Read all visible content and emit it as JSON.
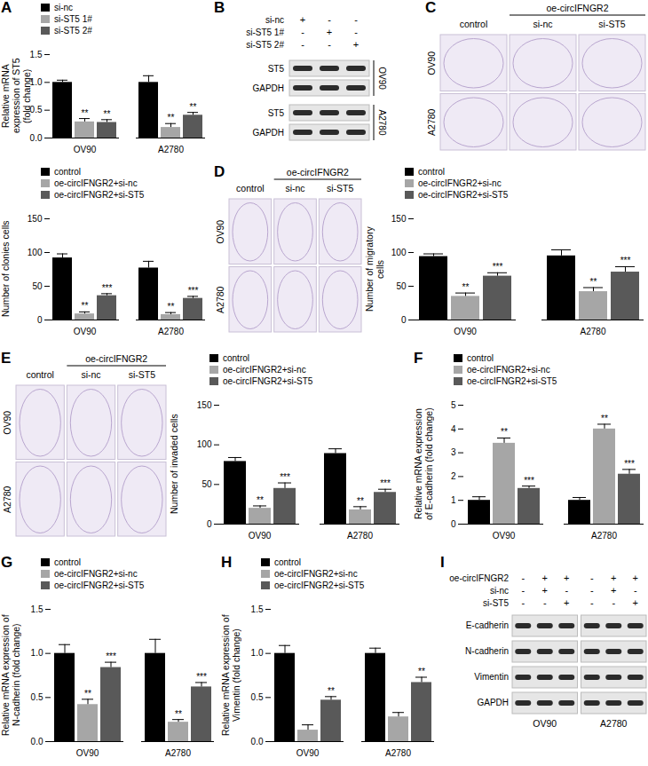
{
  "chart_data": [
    {
      "type": "bar",
      "panel": "A",
      "ylabel": "Relative mRNA expression of ST5 (fold change)",
      "categories": [
        "OV90",
        "A2780"
      ],
      "ylim": [
        0,
        1.5
      ],
      "yticks": [
        {
          "value": 0,
          "label": "0.0"
        },
        {
          "value": 0.5,
          "label": "0.5"
        },
        {
          "value": 1,
          "label": "1.0"
        },
        {
          "value": 1.5,
          "label": "1.5"
        }
      ],
      "series": [
        {
          "name": "si-nc",
          "color": "#000000",
          "values": [
            1.0,
            1.0
          ],
          "errors": [
            0.04,
            0.12
          ],
          "annotations": [
            null,
            null
          ]
        },
        {
          "name": "si-ST5 1#",
          "color": "#a6a6a6",
          "values": [
            0.29,
            0.19
          ],
          "errors": [
            0.06,
            0.07
          ],
          "annotations": [
            "**",
            "**"
          ]
        },
        {
          "name": "si-ST5 2#",
          "color": "#595959",
          "values": [
            0.28,
            0.41
          ],
          "errors": [
            0.05,
            0.05
          ],
          "annotations": [
            "**",
            "**"
          ]
        }
      ]
    },
    {
      "type": "bar",
      "ylabel": "Number of clonies cells",
      "categories": [
        "OV90",
        "A2780"
      ],
      "ylim": [
        0,
        150
      ],
      "yticks": [
        0,
        50,
        100,
        150
      ],
      "series": [
        {
          "name": "control",
          "color": "#000000",
          "values": [
            92,
            77
          ],
          "errors": [
            6,
            10
          ],
          "annotations": [
            null,
            null
          ]
        },
        {
          "name": "oe-circIFNGR2+si-nc",
          "color": "#a6a6a6",
          "values": [
            9,
            8
          ],
          "errors": [
            3,
            3
          ],
          "annotations": [
            "**",
            "**"
          ]
        },
        {
          "name": "oe-circIFNGR2+si-ST5",
          "color": "#595959",
          "values": [
            36,
            32
          ],
          "errors": [
            3,
            3
          ],
          "annotations": [
            "***",
            "***"
          ]
        }
      ]
    },
    {
      "type": "bar",
      "ylabel": "Number of migratory cells",
      "categories": [
        "OV90",
        "A2780"
      ],
      "ylim": [
        0,
        150
      ],
      "yticks": [
        0,
        50,
        100,
        150
      ],
      "series": [
        {
          "name": "control",
          "color": "#000000",
          "values": [
            94,
            95
          ],
          "errors": [
            4,
            9
          ],
          "annotations": [
            null,
            null
          ]
        },
        {
          "name": "oe-circIFNGR2+si-nc",
          "color": "#a6a6a6",
          "values": [
            35,
            42
          ],
          "errors": [
            5,
            6
          ],
          "annotations": [
            "**",
            "**"
          ]
        },
        {
          "name": "oe-circIFNGR2+si-ST5",
          "color": "#595959",
          "values": [
            65,
            71
          ],
          "errors": [
            5,
            8
          ],
          "annotations": [
            "***",
            "***"
          ]
        }
      ]
    },
    {
      "type": "bar",
      "ylabel": "Number of invaded cells",
      "categories": [
        "OV90",
        "A2780"
      ],
      "ylim": [
        0,
        150
      ],
      "yticks": [
        0,
        50,
        100,
        150
      ],
      "series": [
        {
          "name": "control",
          "color": "#000000",
          "values": [
            79,
            89
          ],
          "errors": [
            5,
            6
          ],
          "annotations": [
            null,
            null
          ]
        },
        {
          "name": "oe-circIFNGR2+si-nc",
          "color": "#a6a6a6",
          "values": [
            20,
            18
          ],
          "errors": [
            3,
            4
          ],
          "annotations": [
            "**",
            "**"
          ]
        },
        {
          "name": "oe-circIFNGR2+si-ST5",
          "color": "#595959",
          "values": [
            45,
            40
          ],
          "errors": [
            7,
            4
          ],
          "annotations": [
            "***",
            "***"
          ]
        }
      ]
    },
    {
      "type": "bar",
      "panel": "F",
      "ylabel": "Relative mRNA expression of E-cadherin (fold change)",
      "categories": [
        "OV90",
        "A2780"
      ],
      "ylim": [
        0,
        5
      ],
      "yticks": [
        0,
        1,
        2,
        3,
        4,
        5
      ],
      "series": [
        {
          "name": "control",
          "color": "#000000",
          "values": [
            1.0,
            1.0
          ],
          "errors": [
            0.15,
            0.12
          ],
          "annotations": [
            null,
            null
          ]
        },
        {
          "name": "oe-circIFNGR2+si-nc",
          "color": "#a6a6a6",
          "values": [
            3.4,
            4.0
          ],
          "errors": [
            0.22,
            0.2
          ],
          "annotations": [
            "**",
            "**"
          ]
        },
        {
          "name": "oe-circIFNGR2+si-ST5",
          "color": "#595959",
          "values": [
            1.5,
            2.1
          ],
          "errors": [
            0.1,
            0.2
          ],
          "annotations": [
            "***",
            "***"
          ]
        }
      ]
    },
    {
      "type": "bar",
      "panel": "G",
      "ylabel": "Relative mRNA expression of N-cadherin (fold change)",
      "categories": [
        "OV90",
        "A2780"
      ],
      "ylim": [
        0,
        1.5
      ],
      "yticks": [
        {
          "value": 0,
          "label": "0.0"
        },
        {
          "value": 0.5,
          "label": "0.5"
        },
        {
          "value": 1,
          "label": "1.0"
        },
        {
          "value": 1.5,
          "label": "1.5"
        }
      ],
      "series": [
        {
          "name": "control",
          "color": "#000000",
          "values": [
            1.0,
            1.0
          ],
          "errors": [
            0.1,
            0.16
          ],
          "annotations": [
            null,
            null
          ]
        },
        {
          "name": "oe-circIFNGR2+si-nc",
          "color": "#a6a6a6",
          "values": [
            0.42,
            0.22
          ],
          "errors": [
            0.06,
            0.03
          ],
          "annotations": [
            "**",
            "**"
          ]
        },
        {
          "name": "oe-circIFNGR2+si-ST5",
          "color": "#595959",
          "values": [
            0.84,
            0.62
          ],
          "errors": [
            0.06,
            0.05
          ],
          "annotations": [
            "***",
            "***"
          ]
        }
      ]
    },
    {
      "type": "bar",
      "panel": "H",
      "ylabel": "Relative mRNA expression of Vimentin (fold change)",
      "categories": [
        "OV90",
        "A2780"
      ],
      "ylim": [
        0,
        1.5
      ],
      "yticks": [
        {
          "value": 0,
          "label": "0.0"
        },
        {
          "value": 0.5,
          "label": "0.5"
        },
        {
          "value": 1,
          "label": "1.0"
        },
        {
          "value": 1.5,
          "label": "1.5"
        }
      ],
      "series": [
        {
          "name": "control",
          "color": "#000000",
          "values": [
            1.0,
            1.0
          ],
          "errors": [
            0.09,
            0.06
          ],
          "annotations": [
            null,
            null
          ]
        },
        {
          "name": "oe-circIFNGR2+si-nc",
          "color": "#a6a6a6",
          "values": [
            0.13,
            0.28
          ],
          "errors": [
            0.06,
            0.05
          ],
          "annotations": [
            null,
            null
          ]
        },
        {
          "name": "oe-circIFNGR2+si-ST5",
          "color": "#595959",
          "values": [
            0.47,
            0.67
          ],
          "errors": [
            0.04,
            0.06
          ],
          "annotations": [
            "**",
            "**"
          ]
        }
      ]
    }
  ],
  "blots": [
    {
      "panel": "B",
      "conditions": [
        {
          "name": "si-nc",
          "marks": [
            "+",
            "-",
            "-"
          ]
        },
        {
          "name": "si-ST5 1#",
          "marks": [
            "-",
            "+",
            "-"
          ]
        },
        {
          "name": "si-ST5 2#",
          "marks": [
            "-",
            "-",
            "+"
          ]
        }
      ],
      "groups": [
        {
          "name": "OV90",
          "bands": [
            "ST5",
            "GAPDH"
          ]
        },
        {
          "name": "A2780",
          "bands": [
            "ST5",
            "GAPDH"
          ]
        }
      ]
    },
    {
      "panel": "I",
      "conditions": [
        {
          "name": "oe-circIFNGR2",
          "marks": [
            "-",
            "+",
            "+",
            "-",
            "+",
            "+"
          ]
        },
        {
          "name": "si-nc",
          "marks": [
            "-",
            "+",
            "-",
            "-",
            "+",
            "-"
          ]
        },
        {
          "name": "si-ST5",
          "marks": [
            "-",
            "-",
            "+",
            "-",
            "-",
            "+"
          ]
        }
      ],
      "bands": [
        "E-cadherin",
        "N-cadherin",
        "Vimentin",
        "GAPDH"
      ],
      "groups": [
        "OV90",
        "A2780"
      ]
    }
  ],
  "images": [
    {
      "panel": "C",
      "header": "oe-circIFNGR2",
      "columns": [
        "control",
        "si-nc",
        "si-ST5"
      ],
      "rows": [
        "OV90",
        "A2780"
      ]
    },
    {
      "panel": "D",
      "header": "oe-circIFNGR2",
      "columns": [
        "control",
        "si-nc",
        "si-ST5"
      ],
      "rows": [
        "OV90",
        "A2780"
      ]
    },
    {
      "panel": "E",
      "header": "oe-circIFNGR2",
      "columns": [
        "control",
        "si-nc",
        "si-ST5"
      ],
      "rows": [
        "OV90",
        "A2780"
      ]
    }
  ]
}
